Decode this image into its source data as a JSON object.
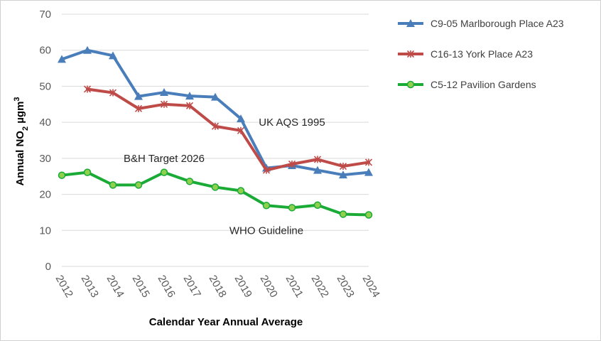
{
  "chart_data": {
    "type": "line",
    "x": [
      "2012",
      "2013",
      "2014",
      "2015",
      "2016",
      "2017",
      "2018",
      "2019",
      "2020",
      "2021",
      "2022",
      "2023",
      "2024"
    ],
    "xlabel": "Calendar Year Annual Average",
    "ylabel": "Annual NO",
    "ylabel_sub": "2",
    "ylabel_unit": " µgm",
    "ylabel_sup": "3",
    "ylim": [
      0,
      70
    ],
    "yticks": [
      0,
      10,
      20,
      30,
      40,
      50,
      60,
      70
    ],
    "grid": true,
    "legend_position": "right",
    "series": [
      {
        "name": "C9-05 Marlborough Place A23",
        "color": "#4a7ebb",
        "marker": "triangle",
        "values": [
          57.5,
          60.0,
          58.5,
          47.2,
          48.3,
          47.3,
          47.0,
          41.0,
          27.3,
          28.0,
          26.7,
          25.4,
          26.1
        ]
      },
      {
        "name": "C16-13 York Place A23",
        "color": "#be4b48",
        "marker": "x",
        "values": [
          null,
          49.2,
          48.2,
          43.8,
          45.0,
          44.6,
          38.9,
          37.7,
          26.7,
          28.4,
          29.7,
          27.8,
          28.9
        ]
      },
      {
        "name": "C5-12 Pavilion Gardens",
        "color": "#1aaa36",
        "marker": "circle",
        "values": [
          25.3,
          26.1,
          22.6,
          22.6,
          26.1,
          23.6,
          22.0,
          21.0,
          16.9,
          16.3,
          17.0,
          14.5,
          14.3
        ]
      }
    ],
    "annotations": [
      {
        "text": "UK AQS 1995",
        "x": "2021",
        "y": 40
      },
      {
        "text": "B&H Target 2026",
        "x": "2016",
        "y": 30
      },
      {
        "text": "WHO Guideline",
        "x": "2020",
        "y": 10
      }
    ]
  }
}
